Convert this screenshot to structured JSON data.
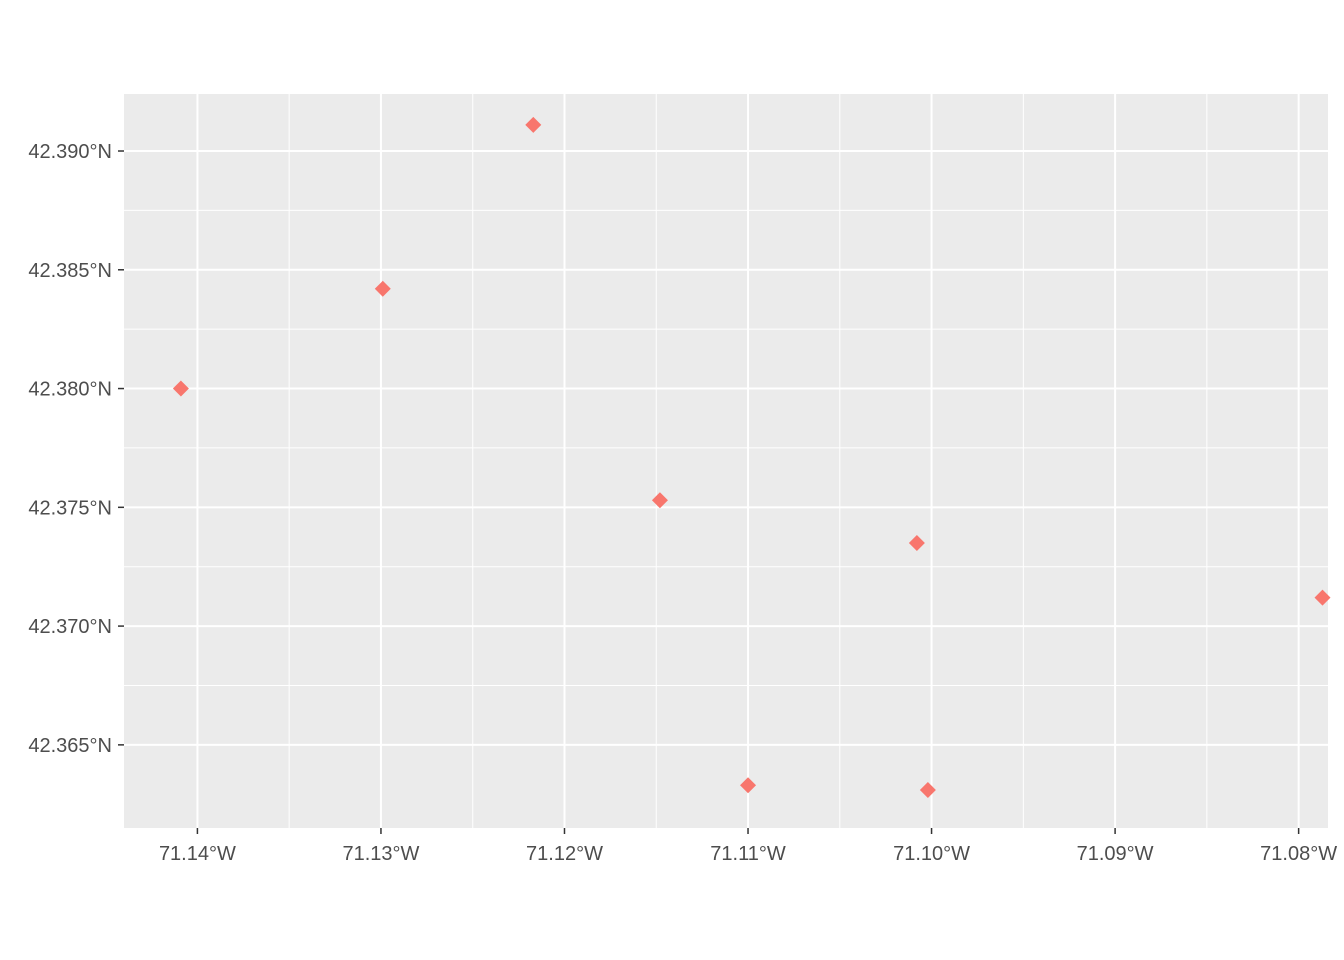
{
  "chart_data": {
    "type": "scatter",
    "title": "",
    "xlabel": "",
    "ylabel": "",
    "xlim": [
      -71.144,
      -71.0784
    ],
    "ylim": [
      42.3615,
      42.3924
    ],
    "x_ticks": [
      -71.14,
      -71.13,
      -71.12,
      -71.11,
      -71.1,
      -71.09,
      -71.08
    ],
    "x_tick_labels": [
      "71.14°W",
      "71.13°W",
      "71.12°W",
      "71.11°W",
      "71.10°W",
      "71.09°W",
      "71.08°W"
    ],
    "y_ticks": [
      42.365,
      42.37,
      42.375,
      42.38,
      42.385,
      42.39
    ],
    "y_tick_labels": [
      "42.365°N",
      "42.370°N",
      "42.375°N",
      "42.380°N",
      "42.385°N",
      "42.390°N"
    ],
    "grid": true,
    "legend": "none",
    "marker": "diamond",
    "point_color": "#F8766D",
    "panel_color": "#EBEBEB",
    "grid_color": "#FFFFFF",
    "points": [
      {
        "x": -71.1409,
        "y": 42.38
      },
      {
        "x": -71.1299,
        "y": 42.3842
      },
      {
        "x": -71.1217,
        "y": 42.3911
      },
      {
        "x": -71.1148,
        "y": 42.3753
      },
      {
        "x": -71.11,
        "y": 42.3633
      },
      {
        "x": -71.1008,
        "y": 42.3735
      },
      {
        "x": -71.1002,
        "y": 42.3631
      },
      {
        "x": -71.0787,
        "y": 42.3712
      }
    ]
  }
}
